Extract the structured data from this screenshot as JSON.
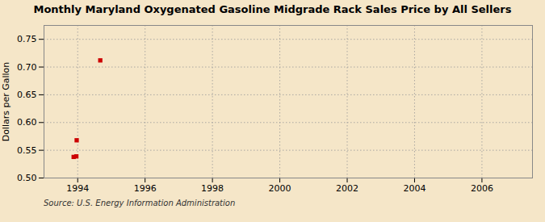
{
  "chart_data": {
    "type": "scatter",
    "title": "Monthly Maryland Oxygenated Gasoline Midgrade Rack Sales Price by All Sellers",
    "ylabel": "Dollars per Gallon",
    "annotations": [
      "Source: U.S. Energy Information Administration"
    ],
    "x": [
      1993.88,
      1993.96,
      1993.97,
      1994.67
    ],
    "values": [
      0.538,
      0.539,
      0.568,
      0.712
    ],
    "color": "#CC0000",
    "marker": "square",
    "xlim": [
      1993.0,
      2007.5
    ],
    "xticks": [
      1994,
      1996,
      1998,
      2000,
      2002,
      2004,
      2006
    ],
    "ylim": [
      0.5,
      0.775
    ],
    "yticks": [
      {
        "value": 0.5,
        "label": "0.50"
      },
      0.55,
      {
        "value": 0.6,
        "label": "0.60"
      },
      0.65,
      {
        "value": 0.7,
        "label": "0.70"
      },
      0.75
    ],
    "grid": true
  }
}
